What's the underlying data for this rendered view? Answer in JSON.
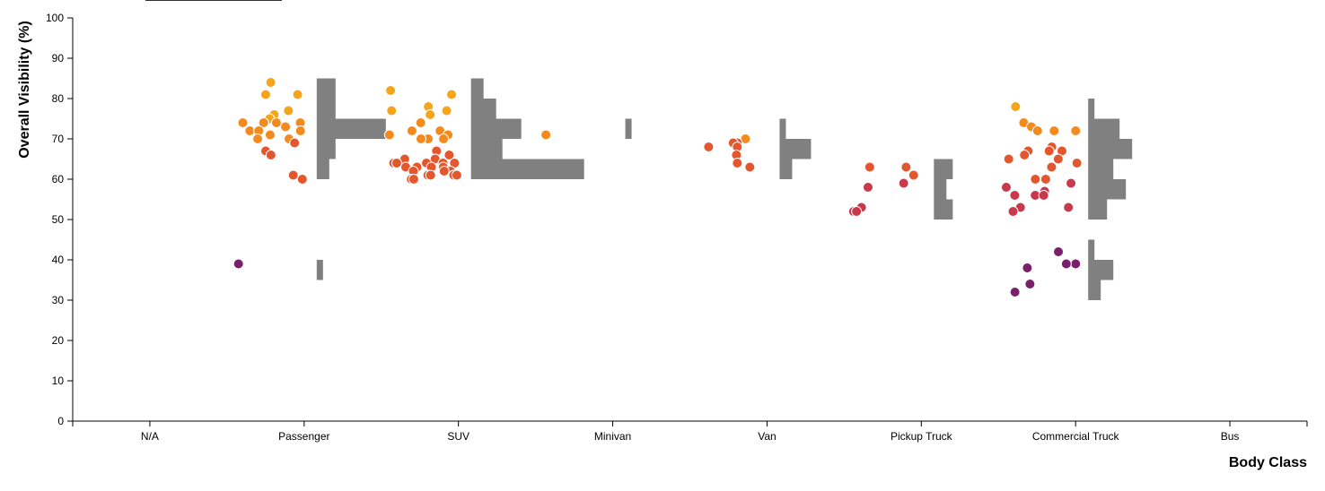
{
  "chart_data": {
    "type": "scatter",
    "xlabel": "Body Class",
    "ylabel": "Overall Visibility (%)",
    "ylim": [
      0,
      100
    ],
    "y_ticks": [
      0,
      10,
      20,
      30,
      40,
      50,
      60,
      70,
      80,
      90,
      100
    ],
    "categories": [
      "N/A",
      "Passenger",
      "SUV",
      "Minivan",
      "Van",
      "Pickup Truck",
      "Commercial Truck",
      "Bus"
    ],
    "grid": false,
    "legend": "none",
    "marginal_histograms": true,
    "histogram_bin_width": 5,
    "colors": {
      "above_75": "#f6a41a",
      "70_to_75": "#f28a1d",
      "60_to_70": "#e4572e",
      "50_to_60": "#c8394b",
      "below_50": "#7a1f6b",
      "histogram": "#808080"
    },
    "series": [
      {
        "category": "Passenger",
        "values": [
          84,
          81,
          81,
          77,
          76,
          75,
          74,
          74,
          74,
          74,
          73,
          72,
          72,
          72,
          71,
          70,
          70,
          69,
          67,
          66,
          61,
          60,
          39
        ]
      },
      {
        "category": "SUV",
        "values": [
          82,
          81,
          78,
          77,
          77,
          76,
          74,
          72,
          72,
          71,
          71,
          70,
          70,
          70,
          67,
          66,
          65,
          65,
          65,
          64,
          64,
          64,
          64,
          64,
          63,
          63,
          63,
          63,
          62,
          62,
          62,
          61,
          61,
          61,
          61,
          60,
          60
        ]
      },
      {
        "category": "Minivan",
        "values": [
          71
        ]
      },
      {
        "category": "Van",
        "values": [
          70,
          69,
          69,
          68,
          68,
          66,
          64,
          63
        ]
      },
      {
        "category": "Pickup Truck",
        "values": [
          63,
          63,
          61,
          59,
          58,
          53,
          52,
          52
        ]
      },
      {
        "category": "Commercial Truck",
        "values": [
          78,
          74,
          73,
          72,
          72,
          72,
          68,
          67,
          67,
          67,
          66,
          65,
          65,
          64,
          63,
          60,
          60,
          59,
          58,
          57,
          56,
          56,
          56,
          53,
          53,
          52,
          42,
          39,
          39,
          38,
          38,
          34,
          32
        ]
      }
    ]
  }
}
